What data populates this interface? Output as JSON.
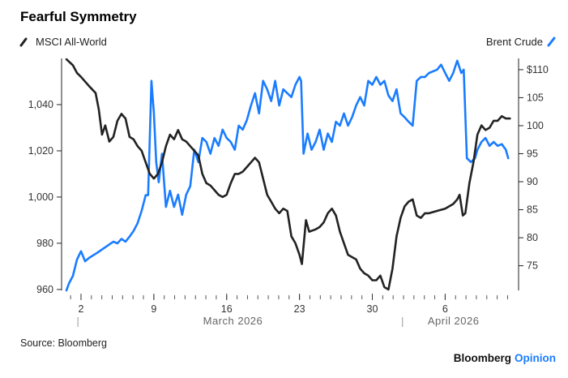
{
  "chart_data": {
    "type": "line",
    "title": "Fearful Symmetry",
    "source": "Source: Bloomberg",
    "brand": {
      "name": "Bloomberg",
      "suffix": "Opinion"
    },
    "colors": {
      "msci": "#222222",
      "brent": "#1a7cff",
      "brand_accent": "#1a7cff"
    },
    "x_unit": "day of March 2026 (April d = 31 + d)",
    "x_range": [
      0.6,
      43.9
    ],
    "x_ticks": [
      {
        "day": 2,
        "label": "2"
      },
      {
        "day": 9,
        "label": "9"
      },
      {
        "day": 16,
        "label": "16"
      },
      {
        "day": 23,
        "label": "23"
      },
      {
        "day": 30,
        "label": "30"
      },
      {
        "day": 37,
        "label": "6"
      }
    ],
    "months": [
      {
        "label": "March 2026",
        "start": 1.7,
        "center": 16.6
      },
      {
        "label": "April 2026",
        "start": 32.9,
        "center": 37.8
      }
    ],
    "left_axis": {
      "series": "MSCI All-World",
      "ylim": [
        959.6,
        1060.7
      ],
      "ticks": [
        {
          "v": 960,
          "label": "960"
        },
        {
          "v": 980,
          "label": "980"
        },
        {
          "v": 1000,
          "label": "1,000"
        },
        {
          "v": 1020,
          "label": "1,020"
        },
        {
          "v": 1040,
          "label": "1,040"
        }
      ]
    },
    "right_axis": {
      "series": "Brent Crude",
      "ylim": [
        70.6,
        112.3
      ],
      "ticks": [
        {
          "v": 75,
          "label": "75"
        },
        {
          "v": 80,
          "label": "80"
        },
        {
          "v": 85,
          "label": "85"
        },
        {
          "v": 90,
          "label": "90"
        },
        {
          "v": 95,
          "label": "95"
        },
        {
          "v": 100,
          "label": "100"
        },
        {
          "v": 105,
          "label": "105"
        },
        {
          "v": 110,
          "label": "$110"
        }
      ]
    },
    "series": [
      {
        "name": "MSCI All-World",
        "axis": "left",
        "points": [
          [
            0.6,
            1059.6
          ],
          [
            1.22,
            1057
          ],
          [
            1.61,
            1053.7
          ],
          [
            2.0,
            1052
          ],
          [
            2.78,
            1048
          ],
          [
            3.4,
            1045
          ],
          [
            3.71,
            1038
          ],
          [
            4.02,
            1027
          ],
          [
            4.33,
            1031
          ],
          [
            4.72,
            1024
          ],
          [
            5.11,
            1026
          ],
          [
            5.5,
            1033
          ],
          [
            5.89,
            1036
          ],
          [
            6.28,
            1034
          ],
          [
            6.67,
            1026
          ],
          [
            7.05,
            1025
          ],
          [
            7.44,
            1022
          ],
          [
            7.83,
            1020
          ],
          [
            8.22,
            1015
          ],
          [
            8.61,
            1010
          ],
          [
            9.0,
            1008
          ],
          [
            9.39,
            1010
          ],
          [
            9.78,
            1015
          ],
          [
            10.16,
            1022
          ],
          [
            10.55,
            1027
          ],
          [
            10.94,
            1025
          ],
          [
            11.33,
            1029
          ],
          [
            11.72,
            1025
          ],
          [
            12.11,
            1024
          ],
          [
            12.5,
            1022
          ],
          [
            12.89,
            1020
          ],
          [
            13.28,
            1018
          ],
          [
            13.66,
            1010
          ],
          [
            14.05,
            1006
          ],
          [
            14.44,
            1005
          ],
          [
            14.83,
            1003
          ],
          [
            15.22,
            1001
          ],
          [
            15.61,
            1000
          ],
          [
            16.0,
            1001
          ],
          [
            16.39,
            1006
          ],
          [
            16.78,
            1010
          ],
          [
            17.16,
            1010
          ],
          [
            17.55,
            1011
          ],
          [
            17.94,
            1013
          ],
          [
            18.33,
            1015
          ],
          [
            18.72,
            1017
          ],
          [
            19.11,
            1015
          ],
          [
            19.5,
            1008
          ],
          [
            19.89,
            1001
          ],
          [
            20.28,
            998
          ],
          [
            20.66,
            995
          ],
          [
            21.05,
            993
          ],
          [
            21.44,
            995
          ],
          [
            21.83,
            994
          ],
          [
            22.22,
            983
          ],
          [
            22.61,
            980
          ],
          [
            23.0,
            975
          ],
          [
            23.23,
            971
          ],
          [
            23.62,
            990
          ],
          [
            23.93,
            985
          ],
          [
            24.55,
            986
          ],
          [
            24.94,
            987
          ],
          [
            25.33,
            989
          ],
          [
            25.72,
            993
          ],
          [
            26.11,
            995
          ],
          [
            26.5,
            992
          ],
          [
            26.88,
            985
          ],
          [
            27.27,
            980
          ],
          [
            27.66,
            975
          ],
          [
            28.05,
            974
          ],
          [
            28.44,
            973
          ],
          [
            28.83,
            969
          ],
          [
            29.22,
            967
          ],
          [
            29.61,
            966
          ],
          [
            30.0,
            964
          ],
          [
            30.38,
            964
          ],
          [
            30.77,
            966
          ],
          [
            31.16,
            961
          ],
          [
            31.55,
            960
          ],
          [
            31.94,
            969
          ],
          [
            32.33,
            983
          ],
          [
            32.72,
            991
          ],
          [
            33.11,
            996
          ],
          [
            33.49,
            998
          ],
          [
            33.88,
            999
          ],
          [
            34.27,
            992
          ],
          [
            34.66,
            991
          ],
          [
            35.05,
            993
          ],
          [
            35.44,
            993
          ],
          [
            36.22,
            994
          ],
          [
            37.0,
            995
          ],
          [
            37.77,
            997
          ],
          [
            38.16,
            999
          ],
          [
            38.39,
            1001
          ],
          [
            38.7,
            992
          ],
          [
            38.94,
            993
          ],
          [
            39.33,
            1006
          ],
          [
            39.72,
            1015
          ],
          [
            40.1,
            1027
          ],
          [
            40.49,
            1031
          ],
          [
            40.88,
            1029
          ],
          [
            41.27,
            1030
          ],
          [
            41.66,
            1033
          ],
          [
            42.05,
            1033
          ],
          [
            42.44,
            1035
          ],
          [
            42.83,
            1034
          ],
          [
            43.22,
            1034
          ]
        ]
      },
      {
        "name": "Brent Crude",
        "axis": "right",
        "points": [
          [
            0.6,
            70.6
          ],
          [
            0.83,
            71.8
          ],
          [
            1.22,
            73.2
          ],
          [
            1.61,
            76.1
          ],
          [
            2.0,
            77.6
          ],
          [
            2.39,
            75.8
          ],
          [
            2.78,
            76.4
          ],
          [
            3.55,
            77.3
          ],
          [
            4.33,
            78.3
          ],
          [
            5.11,
            79.3
          ],
          [
            5.5,
            79
          ],
          [
            5.89,
            79.8
          ],
          [
            6.28,
            79.3
          ],
          [
            6.67,
            80.2
          ],
          [
            7.05,
            81.2
          ],
          [
            7.44,
            82.6
          ],
          [
            7.83,
            84.8
          ],
          [
            8.22,
            87.6
          ],
          [
            8.45,
            87.6
          ],
          [
            8.77,
            108
          ],
          [
            9.0,
            102.3
          ],
          [
            9.23,
            93.5
          ],
          [
            9.47,
            89.9
          ],
          [
            9.78,
            95
          ],
          [
            10.16,
            85.5
          ],
          [
            10.55,
            88.4
          ],
          [
            10.94,
            85.5
          ],
          [
            11.33,
            87.7
          ],
          [
            11.72,
            84.1
          ],
          [
            12.11,
            87.7
          ],
          [
            12.5,
            89.2
          ],
          [
            12.89,
            95.7
          ],
          [
            13.28,
            93.5
          ],
          [
            13.66,
            97.8
          ],
          [
            14.05,
            97.1
          ],
          [
            14.44,
            95
          ],
          [
            14.83,
            97.8
          ],
          [
            15.22,
            96.4
          ],
          [
            15.61,
            99.3
          ],
          [
            16.0,
            97.8
          ],
          [
            16.39,
            97.1
          ],
          [
            16.78,
            95.7
          ],
          [
            17.16,
            100
          ],
          [
            17.55,
            99.3
          ],
          [
            17.94,
            101
          ],
          [
            18.33,
            103.6
          ],
          [
            18.72,
            105.8
          ],
          [
            19.11,
            102.2
          ],
          [
            19.5,
            108
          ],
          [
            19.89,
            106.5
          ],
          [
            20.28,
            104.4
          ],
          [
            20.66,
            108
          ],
          [
            21.05,
            103.6
          ],
          [
            21.44,
            106.5
          ],
          [
            21.83,
            105.8
          ],
          [
            22.22,
            105.1
          ],
          [
            22.61,
            107.3
          ],
          [
            23.0,
            108.7
          ],
          [
            23.15,
            108
          ],
          [
            23.39,
            95
          ],
          [
            23.78,
            98.6
          ],
          [
            24.16,
            95.7
          ],
          [
            24.55,
            97.1
          ],
          [
            24.94,
            99.3
          ],
          [
            25.33,
            95.7
          ],
          [
            25.72,
            98.6
          ],
          [
            26.11,
            97.1
          ],
          [
            26.5,
            100.7
          ],
          [
            26.88,
            100
          ],
          [
            27.27,
            102.2
          ],
          [
            27.66,
            100
          ],
          [
            28.05,
            101.5
          ],
          [
            28.44,
            103.6
          ],
          [
            28.83,
            105.1
          ],
          [
            29.22,
            103.6
          ],
          [
            29.61,
            108
          ],
          [
            30.0,
            107.3
          ],
          [
            30.38,
            108.7
          ],
          [
            30.77,
            107.3
          ],
          [
            31.16,
            108
          ],
          [
            31.55,
            105.4
          ],
          [
            31.94,
            104.4
          ],
          [
            32.33,
            106.5
          ],
          [
            32.72,
            102.2
          ],
          [
            33.11,
            101.5
          ],
          [
            33.49,
            100.7
          ],
          [
            33.88,
            100
          ],
          [
            34.27,
            108
          ],
          [
            34.66,
            108.7
          ],
          [
            35.05,
            108.7
          ],
          [
            35.44,
            109.4
          ],
          [
            36.22,
            110
          ],
          [
            36.61,
            110.9
          ],
          [
            37.0,
            109.4
          ],
          [
            37.39,
            108
          ],
          [
            37.77,
            109.4
          ],
          [
            38.16,
            111.6
          ],
          [
            38.55,
            109.4
          ],
          [
            38.78,
            110
          ],
          [
            39.09,
            94.2
          ],
          [
            39.48,
            93.5
          ],
          [
            39.87,
            94.2
          ],
          [
            40.1,
            95.7
          ],
          [
            40.49,
            97.1
          ],
          [
            40.88,
            97.8
          ],
          [
            41.27,
            96.4
          ],
          [
            41.66,
            97.1
          ],
          [
            42.05,
            96.4
          ],
          [
            42.44,
            96.7
          ],
          [
            42.83,
            95.7
          ],
          [
            43.06,
            94.2
          ]
        ]
      }
    ]
  }
}
